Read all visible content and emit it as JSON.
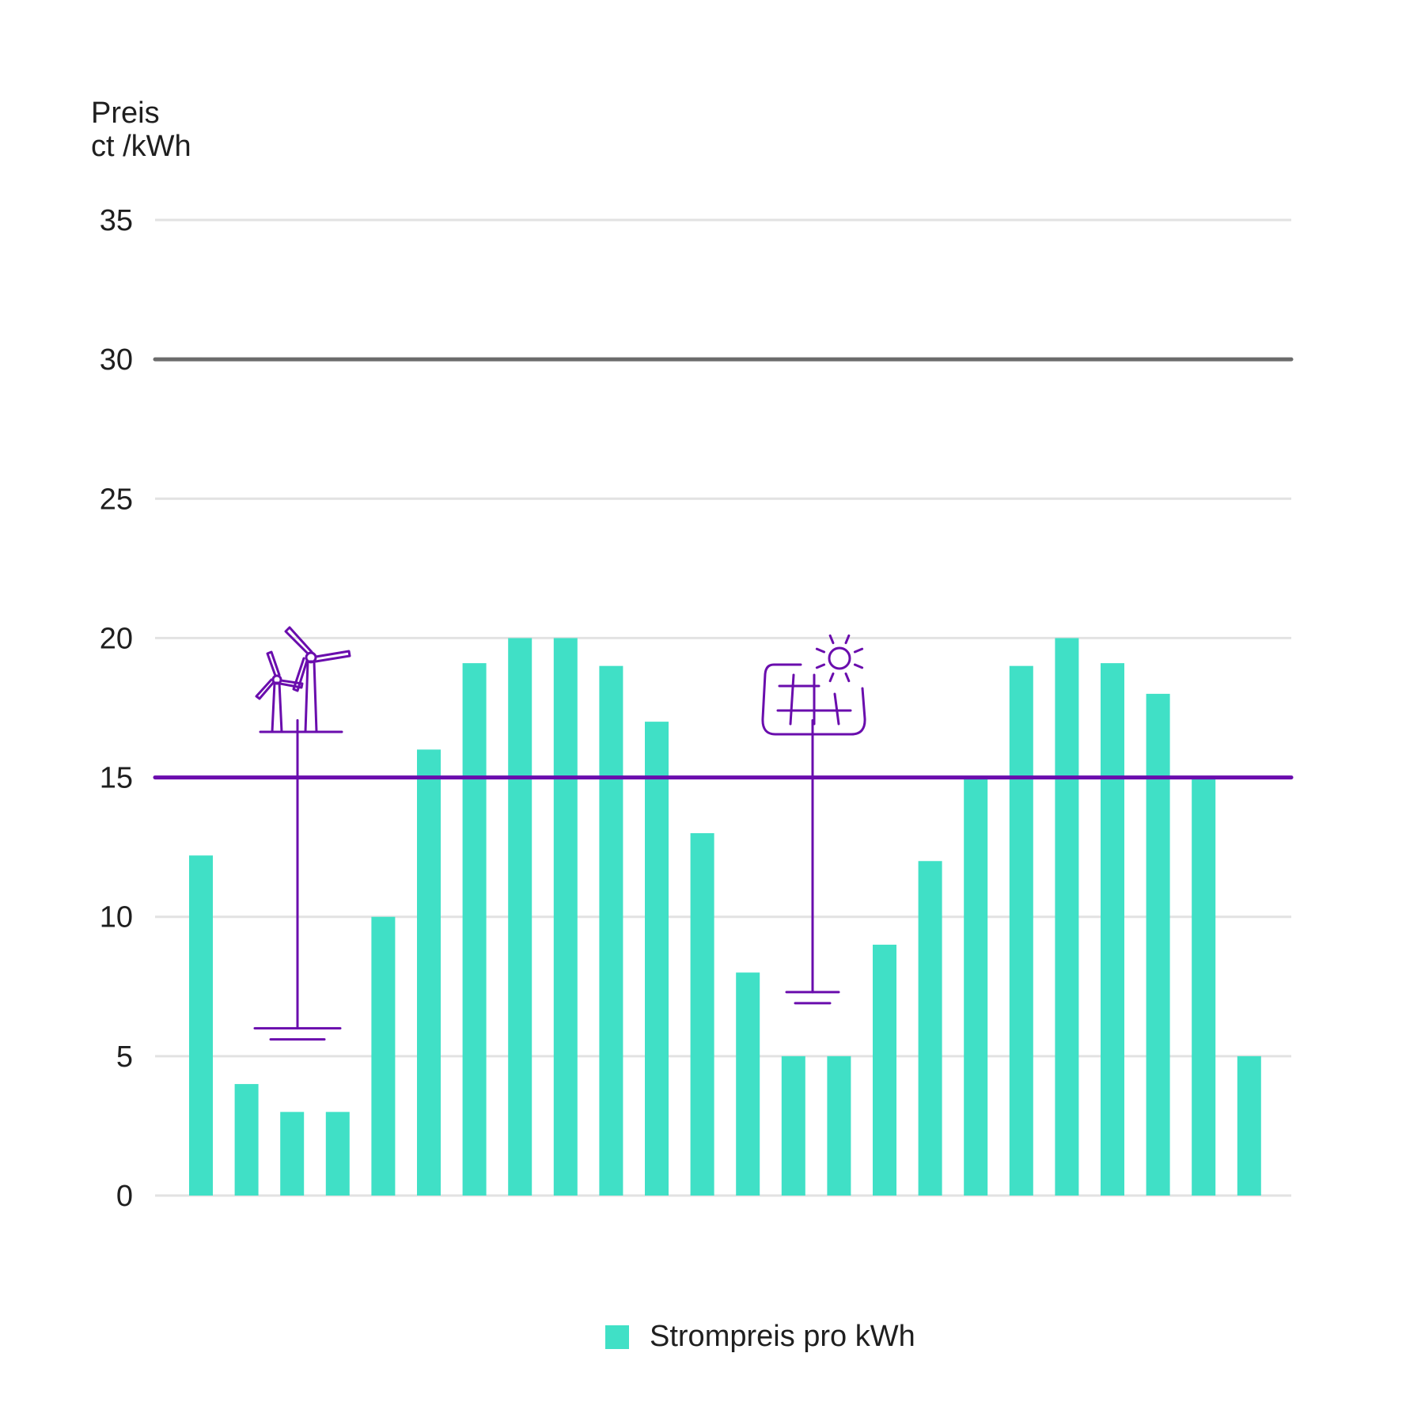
{
  "chart_data": {
    "type": "bar",
    "ylabel": [
      "Preis",
      "ct /kWh"
    ],
    "ylim": [
      0,
      35
    ],
    "yticks": [
      0,
      5,
      10,
      15,
      20,
      25,
      30,
      35
    ],
    "grid": true,
    "values": [
      12.2,
      4,
      3,
      3,
      10,
      16,
      19.1,
      20,
      20,
      19,
      17,
      13,
      8,
      5,
      5,
      9,
      12,
      15,
      19,
      20,
      19.1,
      18,
      15,
      5
    ],
    "series": [
      {
        "name": "Strompreis pro kWh",
        "color": "#40e0c6"
      }
    ],
    "reference_lines": [
      {
        "y": 30,
        "color": "#6b6b6b"
      },
      {
        "y": 15,
        "color": "#6a0dad"
      }
    ],
    "annotations": [
      {
        "icon": "wind-turbine-icon",
        "bar_index": 2,
        "range": [
          6,
          16
        ],
        "color": "#6a0dad"
      },
      {
        "icon": "solar-panel-icon",
        "bar_index": 13,
        "range": [
          7.3,
          16
        ],
        "color": "#6a0dad"
      }
    ],
    "legend_position": "bottom-center"
  },
  "colors": {
    "bar": "#40e0c6",
    "grid": "#e2e2e2",
    "accent": "#6a0dad",
    "reference": "#6b6b6b"
  }
}
